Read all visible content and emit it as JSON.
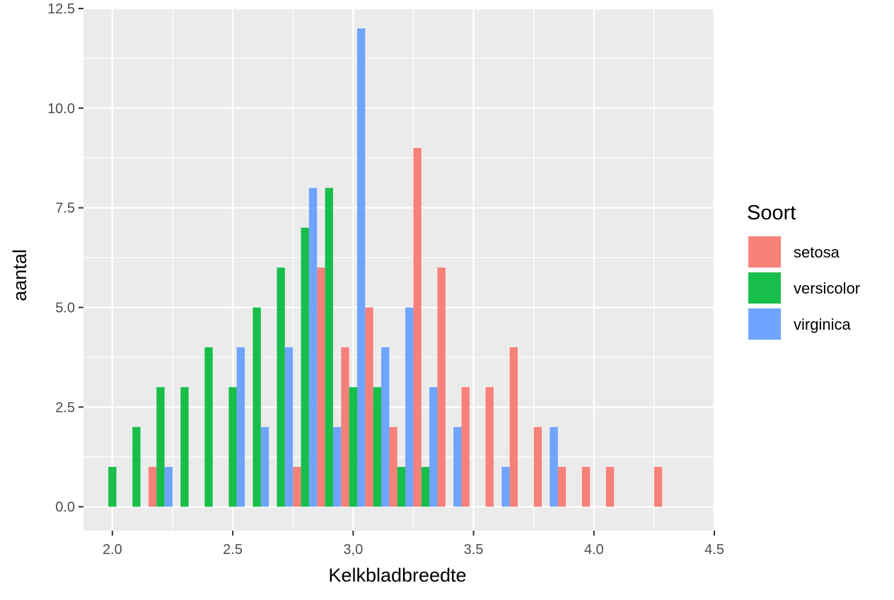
{
  "chart_data": {
    "type": "bar",
    "xlabel": "Kelkbladbreedte",
    "ylabel": "aantal",
    "xlim": [
      1.88,
      4.5
    ],
    "ylim": [
      -0.6,
      12.5
    ],
    "x_ticks": [
      2.0,
      2.5,
      3.0,
      3.5,
      4.0,
      4.5
    ],
    "x_tick_labels": [
      "2.0",
      "2.5",
      "3,0",
      "3.5",
      "4.0",
      "4.5"
    ],
    "y_ticks": [
      0,
      2.5,
      5,
      7.5,
      10,
      12.5
    ],
    "y_tick_labels": [
      "0.0",
      "2.5",
      "5.0",
      "7.5",
      "10.0",
      "12.5"
    ],
    "grid": true,
    "legend": {
      "title": "Soort",
      "position": "right"
    },
    "bin_width": 0.1,
    "series": [
      {
        "name": "setosa",
        "color": "#F8766D",
        "x": [
          2.2,
          2.8,
          2.9,
          3.0,
          3.1,
          3.2,
          3.3,
          3.4,
          3.5,
          3.6,
          3.7,
          3.8,
          3.9,
          4.0,
          4.1,
          4.3
        ],
        "values": [
          1,
          1,
          6,
          4,
          5,
          2,
          9,
          6,
          3,
          3,
          4,
          2,
          1,
          1,
          1,
          1
        ]
      },
      {
        "name": "versicolor",
        "color": "#00BA38",
        "x": [
          2.0,
          2.1,
          2.2,
          2.3,
          2.4,
          2.5,
          2.6,
          2.7,
          2.8,
          2.9,
          3.0,
          3.1,
          3.2,
          3.3
        ],
        "values": [
          1,
          2,
          3,
          3,
          4,
          3,
          5,
          6,
          7,
          8,
          3,
          3,
          1,
          1
        ]
      },
      {
        "name": "virginica",
        "color": "#619CFF",
        "x": [
          2.2,
          2.5,
          2.6,
          2.7,
          2.8,
          2.9,
          3.0,
          3.1,
          3.2,
          3.3,
          3.4,
          3.6,
          3.8
        ],
        "values": [
          1,
          4,
          2,
          4,
          8,
          2,
          12,
          4,
          5,
          3,
          2,
          1,
          2
        ]
      }
    ]
  }
}
